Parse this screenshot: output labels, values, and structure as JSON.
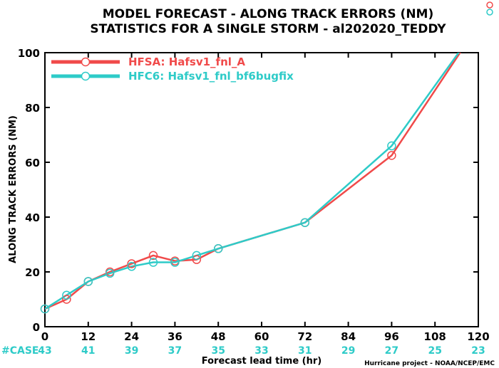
{
  "header": {
    "title_line1": "MODEL FORECAST - ALONG TRACK ERRORS (NM)",
    "title_line2": "STATISTICS FOR A SINGLE STORM - al202020_TEDDY"
  },
  "footer": {
    "case_label": "#CASE",
    "credit": "Hurricane project - NOAA/NCEP/EMC"
  },
  "colors": {
    "hfsa": "#f04a4a",
    "hfc6": "#2ecbc8",
    "axis": "#000000"
  },
  "chart_data": {
    "type": "line",
    "title": "MODEL FORECAST - ALONG TRACK ERRORS (NM)",
    "subtitle": "STATISTICS FOR A SINGLE STORM - al202020_TEDDY",
    "xlabel": "Forecast lead time (hr)",
    "ylabel": "ALONG TRACK ERRORS (NM)",
    "xlim": [
      0,
      120
    ],
    "ylim": [
      0,
      100
    ],
    "xticks": [
      0,
      12,
      24,
      36,
      48,
      60,
      72,
      84,
      96,
      108,
      120
    ],
    "yticks": [
      0,
      20,
      40,
      60,
      80,
      100
    ],
    "grid": false,
    "legend_position": "top-left",
    "case_counts": [
      {
        "x": 0,
        "n": "43"
      },
      {
        "x": 12,
        "n": "41"
      },
      {
        "x": 24,
        "n": "39"
      },
      {
        "x": 36,
        "n": "37"
      },
      {
        "x": 48,
        "n": "35"
      },
      {
        "x": 60,
        "n": "33"
      },
      {
        "x": 72,
        "n": "31"
      },
      {
        "x": 84,
        "n": "29"
      },
      {
        "x": 96,
        "n": "27"
      },
      {
        "x": 108,
        "n": "25"
      },
      {
        "x": 120,
        "n": "23"
      }
    ],
    "series": [
      {
        "name": "HFSA: Hafsv1_fnl_A",
        "color": "#f04a4a",
        "x": [
          0,
          6,
          12,
          18,
          24,
          30,
          36,
          42,
          48,
          72,
          96,
          120
        ],
        "y": [
          6.5,
          10,
          16.5,
          20,
          23,
          26,
          24,
          24.5,
          28.5,
          38,
          62.5,
          110
        ]
      },
      {
        "name": "HFC6: Hafsv1_fnl_bf6bugfix",
        "color": "#2ecbc8",
        "x": [
          0,
          6,
          12,
          18,
          24,
          30,
          36,
          42,
          48,
          72,
          96,
          120
        ],
        "y": [
          6.5,
          11.5,
          16.5,
          19.5,
          22,
          23.5,
          23.5,
          26,
          28.5,
          38,
          66,
          110
        ]
      }
    ]
  }
}
